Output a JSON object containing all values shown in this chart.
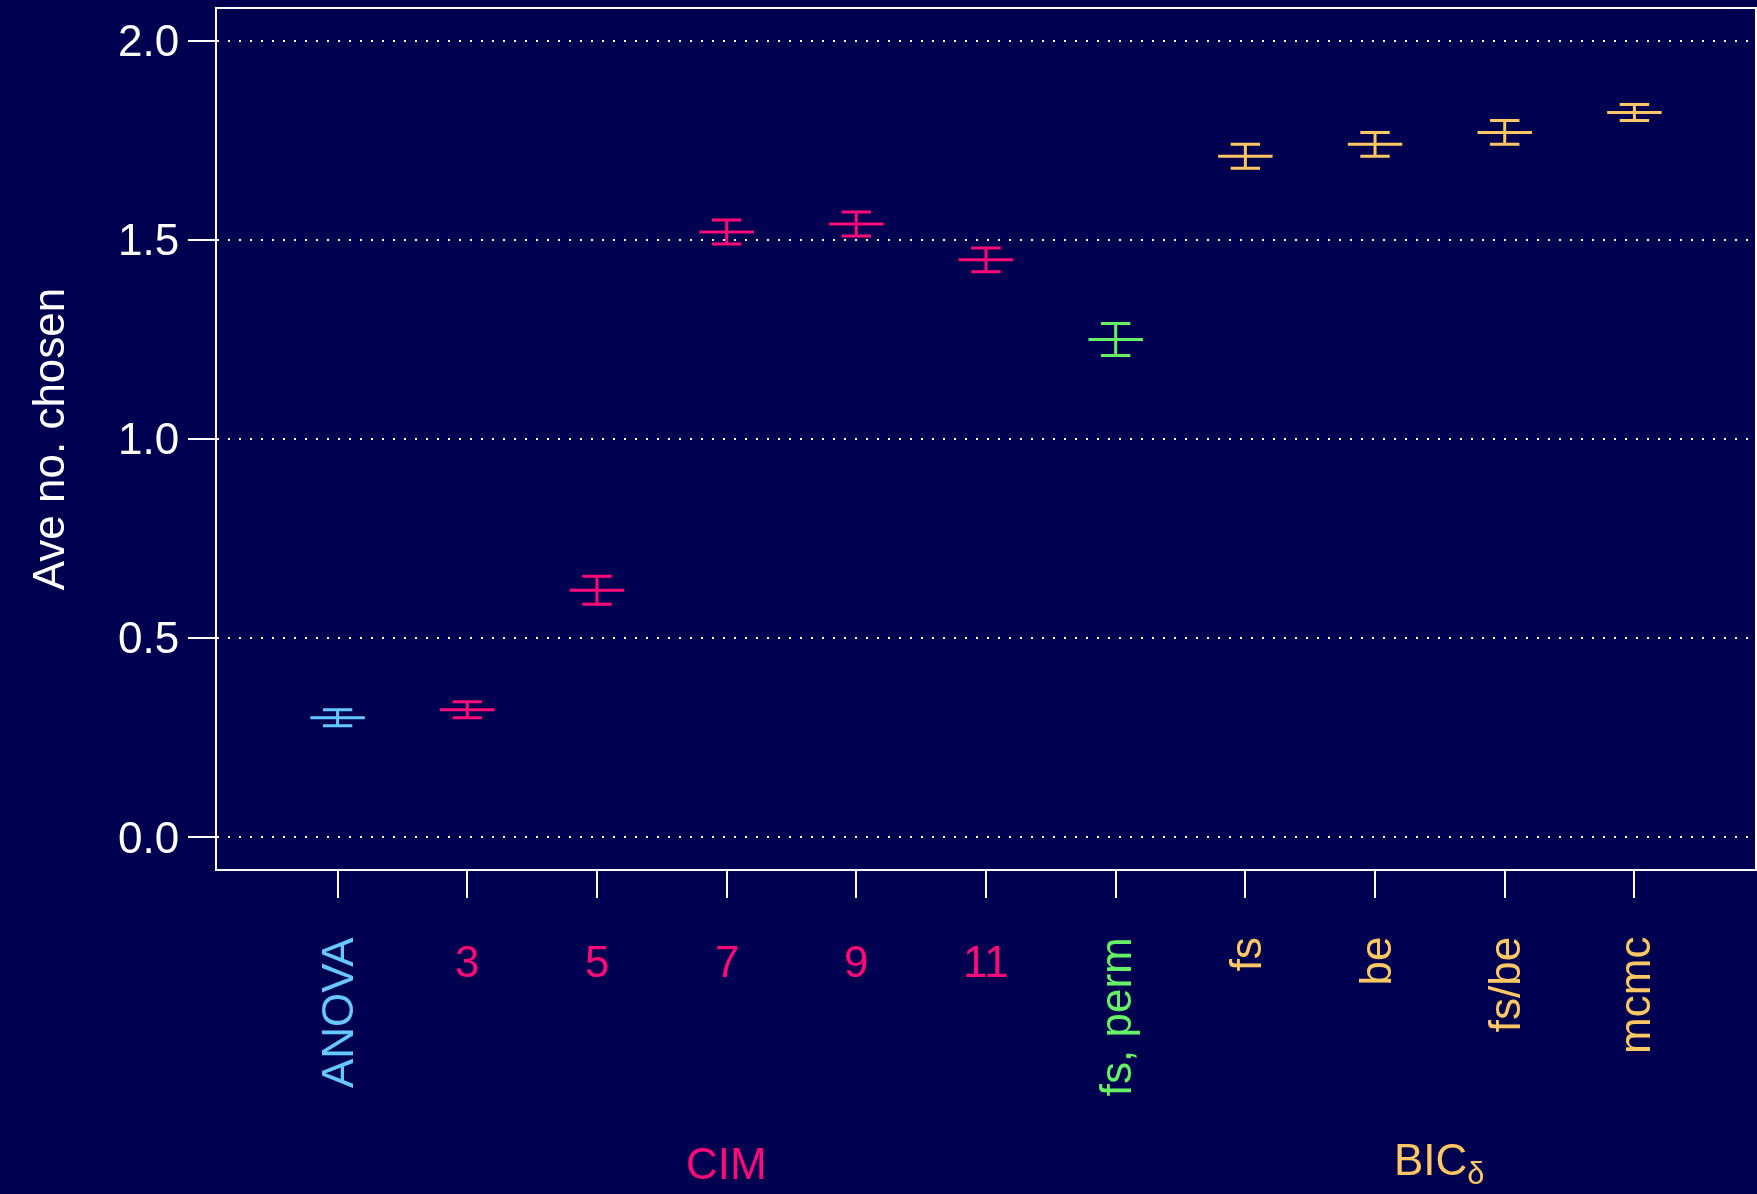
{
  "chart_data": {
    "type": "box",
    "ylabel": "Ave no. chosen",
    "categories": [
      "ANOVA",
      "3",
      "5",
      "7",
      "9",
      "11",
      "fs, perm",
      "fs",
      "be",
      "fs/be",
      "mcmc"
    ],
    "series": [
      {
        "color": "#66c8ff",
        "boxes": [
          {
            "low": 0.28,
            "q1": 0.3,
            "median": 0.3,
            "q3": 0.3,
            "high": 0.32
          },
          null,
          null,
          null,
          null,
          null,
          null,
          null,
          null,
          null,
          null
        ]
      },
      {
        "name": "CIM",
        "color": "#ff0a78",
        "boxes": [
          null,
          {
            "low": 0.3,
            "q1": 0.32,
            "median": 0.32,
            "q3": 0.32,
            "high": 0.34
          },
          {
            "low": 0.585,
            "q1": 0.62,
            "median": 0.62,
            "q3": 0.62,
            "high": 0.655
          },
          {
            "low": 1.49,
            "q1": 1.52,
            "median": 1.52,
            "q3": 1.52,
            "high": 1.55
          },
          {
            "low": 1.51,
            "q1": 1.54,
            "median": 1.54,
            "q3": 1.54,
            "high": 1.57
          },
          {
            "low": 1.42,
            "q1": 1.45,
            "median": 1.45,
            "q3": 1.45,
            "high": 1.48
          },
          null,
          null,
          null,
          null,
          null
        ]
      },
      {
        "color": "#66f066",
        "boxes": [
          null,
          null,
          null,
          null,
          null,
          null,
          {
            "low": 1.21,
            "q1": 1.25,
            "median": 1.25,
            "q3": 1.25,
            "high": 1.29
          },
          null,
          null,
          null,
          null
        ]
      },
      {
        "name": "BIC$_{δ}$",
        "color": "#ffc864",
        "boxes": [
          null,
          null,
          null,
          null,
          null,
          null,
          null,
          {
            "low": 1.68,
            "q1": 1.71,
            "median": 1.71,
            "q3": 1.71,
            "high": 1.74
          },
          {
            "low": 1.71,
            "q1": 1.74,
            "median": 1.74,
            "q3": 1.74,
            "high": 1.77
          },
          {
            "low": 1.74,
            "q1": 1.77,
            "median": 1.77,
            "q3": 1.77,
            "high": 1.8
          },
          {
            "low": 1.8,
            "q1": 1.82,
            "median": 1.82,
            "q3": 1.82,
            "high": 1.84
          }
        ]
      }
    ],
    "ylim": [
      -0.08,
      2.08
    ],
    "yticks": [
      {
        "value": 0,
        "label": "0.0"
      },
      0.5,
      {
        "value": 1,
        "label": "1.0"
      },
      1.5,
      {
        "value": 2,
        "label": "2.0"
      }
    ],
    "grid": "y"
  }
}
